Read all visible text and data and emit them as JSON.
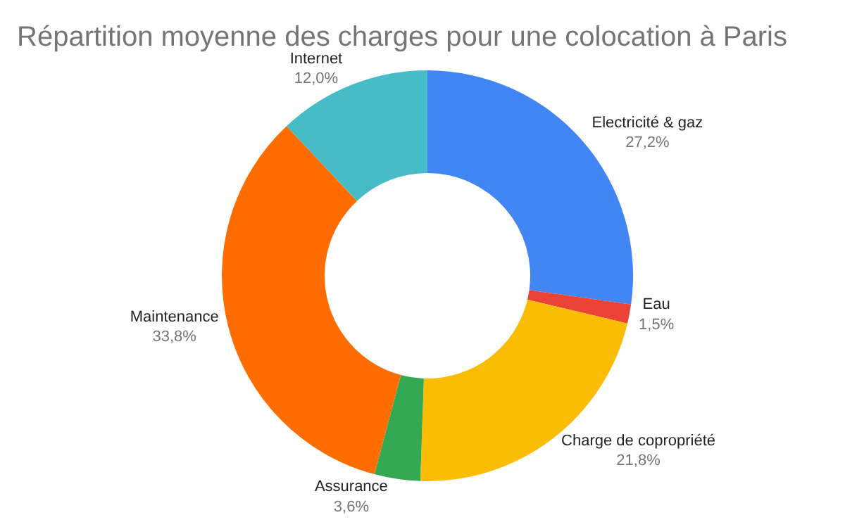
{
  "chart_data": {
    "type": "donut",
    "title": "Répartition moyenne des charges pour une colocation à Paris",
    "categories": [
      "Electricité & gaz",
      "Eau",
      "Charge de copropriété",
      "Assurance",
      "Maintenance",
      "Internet"
    ],
    "values": [
      27.2,
      1.5,
      21.8,
      3.6,
      33.8,
      12.0
    ],
    "value_labels": [
      "27,2%",
      "1,5%",
      "21,8%",
      "3,6%",
      "33,8%",
      "12,0%"
    ],
    "colors": [
      "#4285f4",
      "#ea4335",
      "#fbbc04",
      "#34a853",
      "#ff6d01",
      "#46bdc6"
    ],
    "legend": false
  }
}
